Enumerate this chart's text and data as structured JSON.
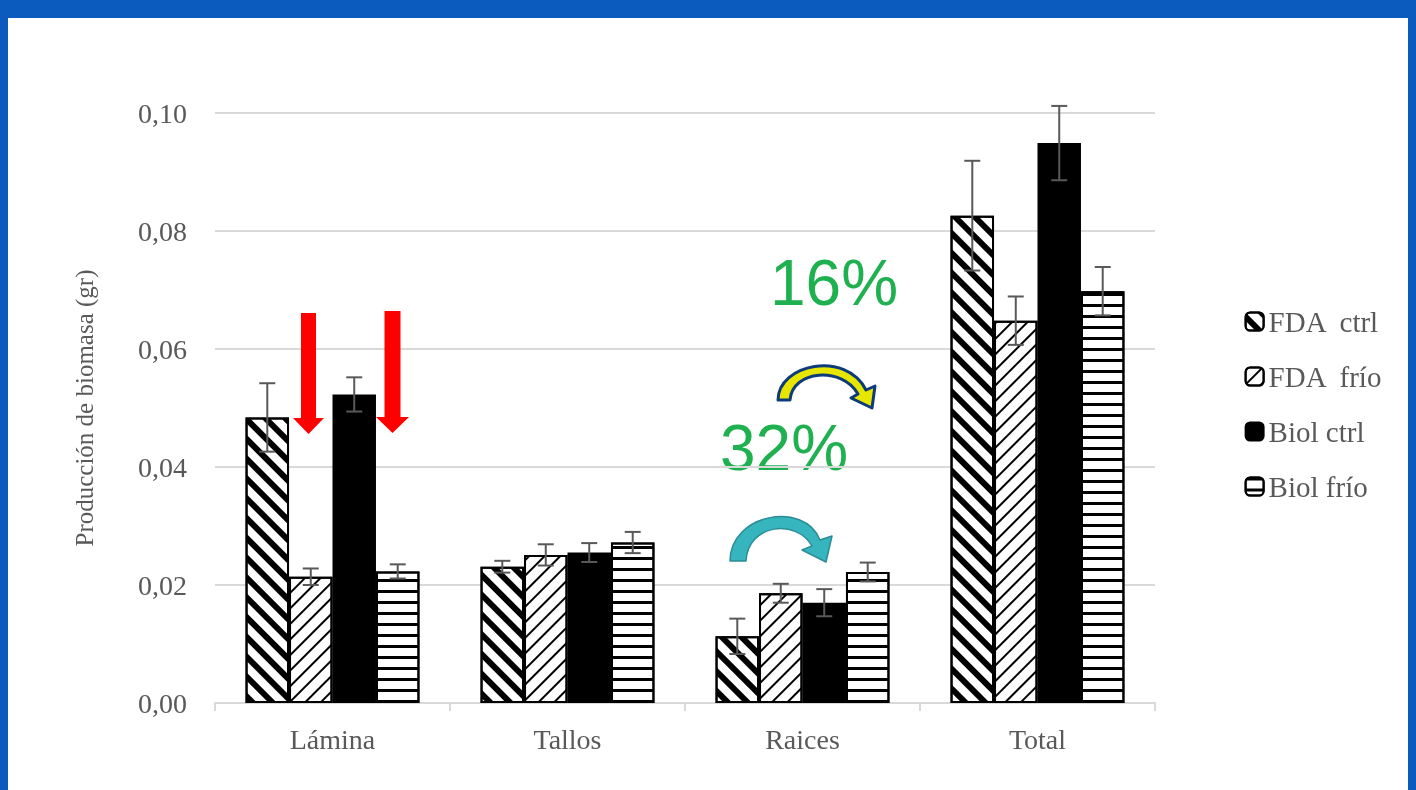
{
  "chart_data": {
    "type": "bar",
    "ylabel": "Producción de biomasa (gr)",
    "categories": [
      "Lámina",
      "Tallos",
      "Raices",
      "Total"
    ],
    "series": [
      {
        "name": "FDA  ctrl",
        "color": "#ffffff",
        "values": [
          0.0484,
          0.0231,
          0.0113,
          0.0826
        ],
        "errors": [
          0.0058,
          0.001,
          0.003,
          0.0093
        ]
      },
      {
        "name": "FDA  frío",
        "color": "#ffffff",
        "values": [
          0.0214,
          0.0251,
          0.0186,
          0.0648
        ],
        "errors": [
          0.0014,
          0.0018,
          0.0016,
          0.0041
        ]
      },
      {
        "name": "Biol ctrl",
        "color": "#000000",
        "values": [
          0.0523,
          0.0255,
          0.017,
          0.0949
        ],
        "errors": [
          0.0029,
          0.0016,
          0.0023,
          0.0063
        ]
      },
      {
        "name": "Biol frío",
        "color": "#ffffff",
        "values": [
          0.0223,
          0.0272,
          0.0222,
          0.0698
        ],
        "errors": [
          0.0012,
          0.0018,
          0.0016,
          0.0041
        ]
      }
    ],
    "ylim": [
      0,
      0.1
    ],
    "yticks": [
      {
        "value": 0,
        "label": "0,00"
      },
      {
        "value": 0.02,
        "label": "0,02"
      },
      {
        "value": 0.04,
        "label": "0,04"
      },
      {
        "value": 0.06,
        "label": "0,06"
      },
      {
        "value": 0.08,
        "label": "0,08"
      },
      {
        "value": 0.1,
        "label": "0,10"
      }
    ],
    "grid": "y",
    "legend": "right",
    "annotations": [
      "16%",
      "32%"
    ]
  }
}
